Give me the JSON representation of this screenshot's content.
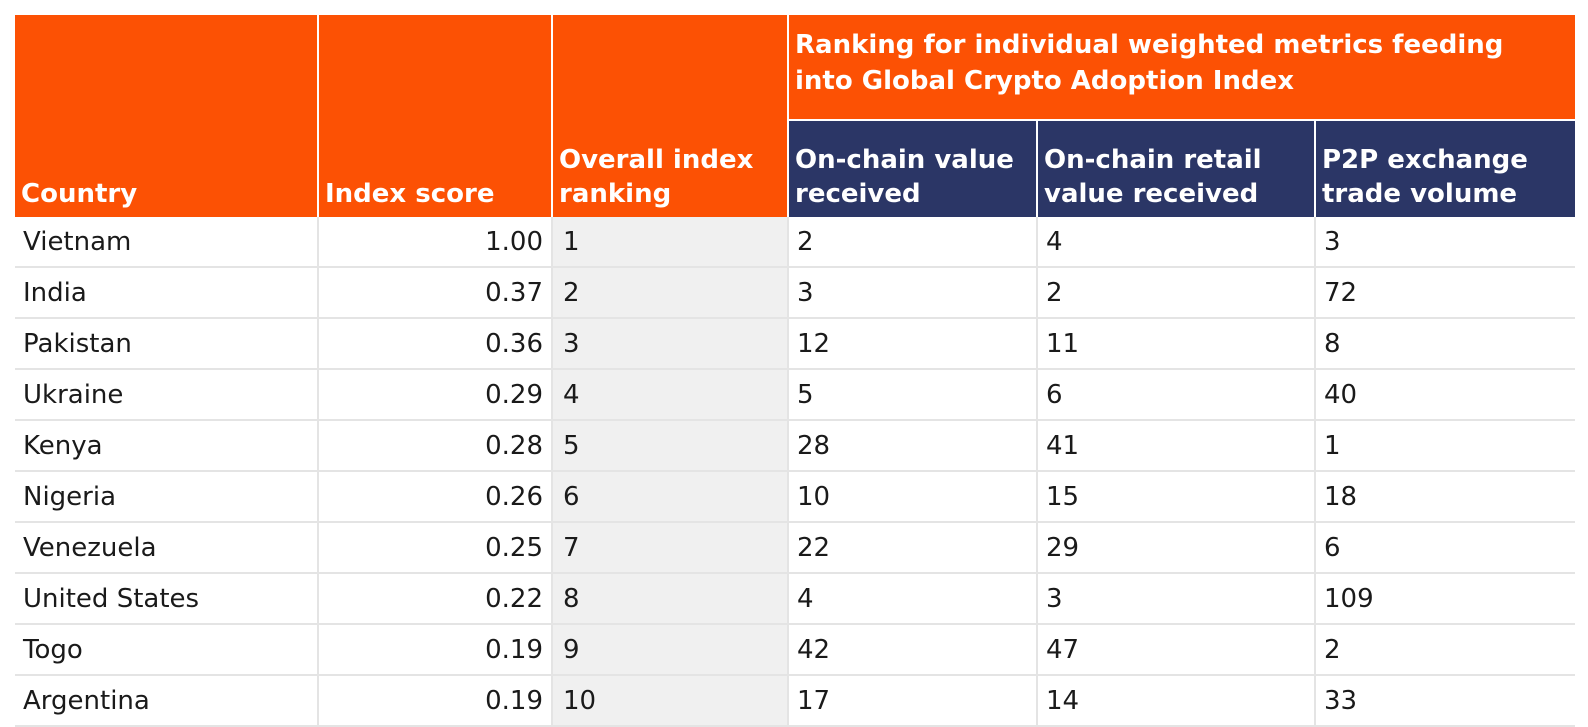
{
  "table": {
    "headers": {
      "country": "Country",
      "index_score": "Index score",
      "overall_ranking": "Overall index ranking",
      "group": "Ranking for individual weighted metrics feeding into Global Crypto Adoption Index",
      "onchain_value": "On-chain value received",
      "onchain_retail": "On-chain retail value received",
      "p2p_volume": "P2P exchange trade volume"
    },
    "rows": [
      {
        "country": "Vietnam",
        "score": "1.00",
        "rank": "1",
        "onchain_value": "2",
        "onchain_retail": "4",
        "p2p": "3"
      },
      {
        "country": "India",
        "score": "0.37",
        "rank": "2",
        "onchain_value": "3",
        "onchain_retail": "2",
        "p2p": "72"
      },
      {
        "country": "Pakistan",
        "score": "0.36",
        "rank": "3",
        "onchain_value": "12",
        "onchain_retail": "11",
        "p2p": "8"
      },
      {
        "country": "Ukraine",
        "score": "0.29",
        "rank": "4",
        "onchain_value": "5",
        "onchain_retail": "6",
        "p2p": "40"
      },
      {
        "country": "Kenya",
        "score": "0.28",
        "rank": "5",
        "onchain_value": "28",
        "onchain_retail": "41",
        "p2p": "1"
      },
      {
        "country": "Nigeria",
        "score": "0.26",
        "rank": "6",
        "onchain_value": "10",
        "onchain_retail": "15",
        "p2p": "18"
      },
      {
        "country": "Venezuela",
        "score": "0.25",
        "rank": "7",
        "onchain_value": "22",
        "onchain_retail": "29",
        "p2p": "6"
      },
      {
        "country": "United States",
        "score": "0.22",
        "rank": "8",
        "onchain_value": "4",
        "onchain_retail": "3",
        "p2p": "109"
      },
      {
        "country": "Togo",
        "score": "0.19",
        "rank": "9",
        "onchain_value": "42",
        "onchain_retail": "47",
        "p2p": "2"
      },
      {
        "country": "Argentina",
        "score": "0.19",
        "rank": "10",
        "onchain_value": "17",
        "onchain_retail": "14",
        "p2p": "33"
      }
    ]
  },
  "colors": {
    "header_orange": "#fc5104",
    "header_navy": "#2b3666",
    "rank_column_bg": "#f0f0f0",
    "grid_line": "#e4e4e4"
  }
}
